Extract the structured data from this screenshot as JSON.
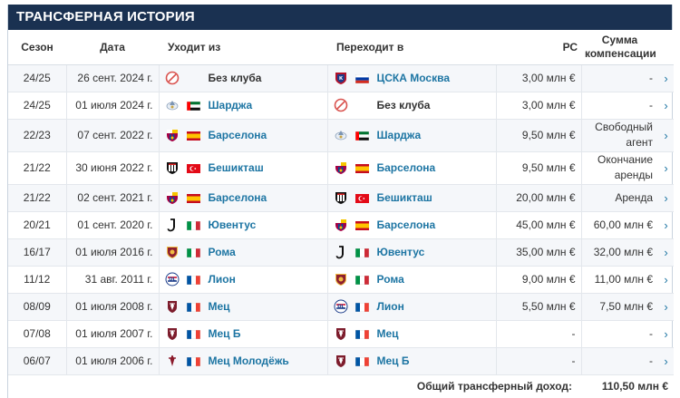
{
  "section": {
    "title": "Трансферная история"
  },
  "columns": {
    "season": "Сезон",
    "date": "Дата",
    "from": "Уходит из",
    "to": "Переходит в",
    "market_value": "РС",
    "fee": "Сумма компенсации"
  },
  "rows": [
    {
      "season": "24/25",
      "date": "26 сент. 2024 г.",
      "from": {
        "name": "Без клуба",
        "crest": "no-club-icon",
        "flag": "",
        "link": false
      },
      "to": {
        "name": "ЦСКА Москва",
        "crest": "cska-crest-icon",
        "flag": "russia",
        "link": true
      },
      "mv": "3,00 млн €",
      "fee": "-"
    },
    {
      "season": "24/25",
      "date": "01 июля 2024 г.",
      "from": {
        "name": "Шарджа",
        "crest": "sharjah-crest-icon",
        "flag": "uae",
        "link": true
      },
      "to": {
        "name": "Без клуба",
        "crest": "no-club-icon",
        "flag": "",
        "link": false
      },
      "mv": "3,00 млн €",
      "fee": "-"
    },
    {
      "season": "22/23",
      "date": "07 сент. 2022 г.",
      "from": {
        "name": "Барселона",
        "crest": "barcelona-crest-icon",
        "flag": "spain",
        "link": true
      },
      "to": {
        "name": "Шарджа",
        "crest": "sharjah-crest-icon",
        "flag": "uae",
        "link": true
      },
      "mv": "9,50 млн €",
      "fee": "Свободный агент"
    },
    {
      "season": "21/22",
      "date": "30 июня 2022 г.",
      "from": {
        "name": "Бешикташ",
        "crest": "besiktas-crest-icon",
        "flag": "turkey",
        "link": true
      },
      "to": {
        "name": "Барселона",
        "crest": "barcelona-crest-icon",
        "flag": "spain",
        "link": true
      },
      "mv": "9,50 млн €",
      "fee": "Окончание аренды"
    },
    {
      "season": "21/22",
      "date": "02 сент. 2021 г.",
      "from": {
        "name": "Барселона",
        "crest": "barcelona-crest-icon",
        "flag": "spain",
        "link": true
      },
      "to": {
        "name": "Бешикташ",
        "crest": "besiktas-crest-icon",
        "flag": "turkey",
        "link": true
      },
      "mv": "20,00 млн €",
      "fee": "Аренда"
    },
    {
      "season": "20/21",
      "date": "01 сент. 2020 г.",
      "from": {
        "name": "Ювентус",
        "crest": "juventus-crest-icon",
        "flag": "italy",
        "link": true
      },
      "to": {
        "name": "Барселона",
        "crest": "barcelona-crest-icon",
        "flag": "spain",
        "link": true
      },
      "mv": "45,00 млн €",
      "fee": "60,00 млн €"
    },
    {
      "season": "16/17",
      "date": "01 июля 2016 г.",
      "from": {
        "name": "Рома",
        "crest": "roma-crest-icon",
        "flag": "italy",
        "link": true
      },
      "to": {
        "name": "Ювентус",
        "crest": "juventus-crest-icon",
        "flag": "italy",
        "link": true
      },
      "mv": "35,00 млн €",
      "fee": "32,00 млн €"
    },
    {
      "season": "11/12",
      "date": "31 авг. 2011 г.",
      "from": {
        "name": "Лион",
        "crest": "lyon-crest-icon",
        "flag": "france",
        "link": true
      },
      "to": {
        "name": "Рома",
        "crest": "roma-crest-icon",
        "flag": "italy",
        "link": true
      },
      "mv": "9,00 млн €",
      "fee": "11,00 млн €"
    },
    {
      "season": "08/09",
      "date": "01 июля 2008 г.",
      "from": {
        "name": "Мец",
        "crest": "metz-crest-icon",
        "flag": "france",
        "link": true
      },
      "to": {
        "name": "Лион",
        "crest": "lyon-crest-icon",
        "flag": "france",
        "link": true
      },
      "mv": "5,50 млн €",
      "fee": "7,50 млн €"
    },
    {
      "season": "07/08",
      "date": "01 июля 2007 г.",
      "from": {
        "name": "Мец Б",
        "crest": "metz-crest-icon",
        "flag": "france",
        "link": true
      },
      "to": {
        "name": "Мец",
        "crest": "metz-crest-icon",
        "flag": "france",
        "link": true
      },
      "mv": "-",
      "fee": "-"
    },
    {
      "season": "06/07",
      "date": "01 июля 2006 г.",
      "from": {
        "name": "Мец Молодёжь",
        "crest": "metz-youth-crest-icon",
        "flag": "france",
        "link": true
      },
      "to": {
        "name": "Мец Б",
        "crest": "metz-crest-icon",
        "flag": "france",
        "link": true
      },
      "mv": "-",
      "fee": "-"
    }
  ],
  "footer": {
    "label": "Общий трансферный доход:",
    "total": "110,50 млн €"
  },
  "colors": {
    "header_bg": "#1a3151",
    "link": "#1d75a3",
    "row_alt": "#f5f7fa"
  }
}
